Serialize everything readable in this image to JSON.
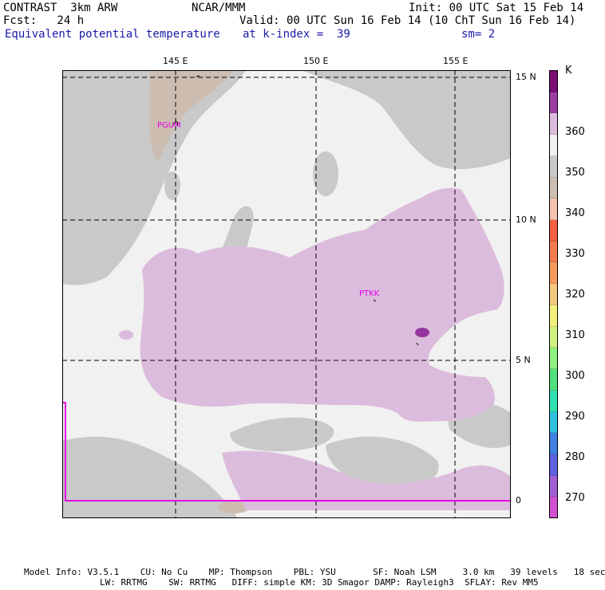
{
  "header": {
    "model": "CONTRAST  3km ARW",
    "org": "NCAR/MMM",
    "init": "Init: 00 UTC Sat 15 Feb 14",
    "fcst": "Fcst:   24 h",
    "valid": "Valid: 00 UTC Sun 16 Feb 14 (10 ChT Sun 16 Feb 14)",
    "field": "Equivalent potential temperature",
    "level": "at k-index =  39",
    "smooth": "sm= 2"
  },
  "map": {
    "lon_labels": [
      "145 E",
      "150 E",
      "155 E"
    ],
    "lat_labels": [
      "15 N",
      "10 N",
      "5 N",
      "0"
    ],
    "stations": [
      {
        "id": "PGUM"
      },
      {
        "id": "PTKK"
      }
    ],
    "colors": {
      "background": "#f1f1f1",
      "gray": "#c9c9c9",
      "tan": "#cdbdb0",
      "lilac": "#dcbcdc",
      "purple": "#96359e",
      "magenta": "#e600e6"
    }
  },
  "colorbar": {
    "unit": "K",
    "labels": [
      "360",
      "350",
      "340",
      "330",
      "320",
      "310",
      "300",
      "290",
      "280",
      "270"
    ],
    "swatches": [
      "#7a0f76",
      "#9b3ea4",
      "#dcbcdc",
      "#f1f1f1",
      "#c9c9c9",
      "#cdbdb0",
      "#f4c4b0",
      "#f46040",
      "#f47c50",
      "#f49c60",
      "#f4c880",
      "#f4f080",
      "#d0f080",
      "#90f080",
      "#50e080",
      "#30e0b0",
      "#30c0e0",
      "#4080e0",
      "#6060e0",
      "#a060d0",
      "#d050d0"
    ]
  },
  "footer": {
    "line1": "Model Info: V3.5.1    CU: No Cu    MP: Thompson    PBL: YSU       SF: Noah LSM     3.0 km   39 levels   18 sec",
    "line2": "LW: RRTMG    SW: RRTMG   DIFF: simple KM: 3D Smagor DAMP: Rayleigh3  SFLAY: Rev MM5"
  }
}
